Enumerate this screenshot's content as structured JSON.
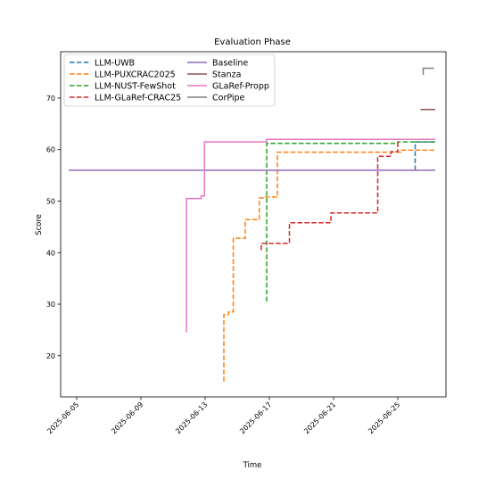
{
  "chart_data": {
    "type": "line",
    "title": "Evaluation Phase",
    "xlabel": "Time",
    "ylabel": "Score",
    "xlim": [
      "2025-06-04",
      "2025-06-28"
    ],
    "ylim": [
      12,
      79
    ],
    "x_ticks": [
      "2025-06-05",
      "2025-06-09",
      "2025-06-13",
      "2025-06-17",
      "2025-06-21",
      "2025-06-25"
    ],
    "y_ticks": [
      20,
      30,
      40,
      50,
      60,
      70
    ],
    "grid": false,
    "legend": "top-left",
    "series": [
      {
        "name": "LLM-UWB",
        "color": "#1f77b4",
        "dash": true,
        "x": [
          "2025-06-26 02:00",
          "2025-06-26 02:00",
          "2025-06-27 08:00"
        ],
        "y": [
          56,
          61.5,
          61.5
        ]
      },
      {
        "name": "LLM-PUXCRAC2025",
        "color": "#ff7f0e",
        "dash": true,
        "x": [
          "2025-06-14 04:00",
          "2025-06-14 04:00",
          "2025-06-14 11:00",
          "2025-06-14 11:00",
          "2025-06-14 18:00",
          "2025-06-14 18:00",
          "2025-06-15 12:00",
          "2025-06-15 12:00",
          "2025-06-16 09:00",
          "2025-06-16 09:00",
          "2025-06-16 18:00",
          "2025-06-16 18:00",
          "2025-06-17 12:00",
          "2025-06-17 12:00",
          "2025-06-25 06:00",
          "2025-06-25 06:00",
          "2025-06-27 08:00"
        ],
        "y": [
          15,
          28,
          28,
          28.5,
          28.5,
          42.8,
          42.8,
          46.4,
          46.4,
          50.6,
          50.6,
          50.8,
          50.8,
          59.5,
          59.5,
          59.9,
          59.9
        ]
      },
      {
        "name": "LLM-NUST-FewShot",
        "color": "#2ca02c",
        "dash": true,
        "x": [
          "2025-06-16 20:00",
          "2025-06-16 20:00",
          "2025-06-25 00:00",
          "2025-06-25 00:00",
          "2025-06-27 08:00"
        ],
        "y": [
          30.5,
          61.2,
          61.2,
          61.5,
          61.5
        ]
      },
      {
        "name": "LLM-GLaRef-CRAC25",
        "color": "#d62728",
        "dash": true,
        "x": [
          "2025-06-16 12:00",
          "2025-06-16 12:00",
          "2025-06-18 06:00",
          "2025-06-18 06:00",
          "2025-06-20 20:00",
          "2025-06-20 20:00",
          "2025-06-23 18:00",
          "2025-06-23 18:00",
          "2025-06-24 14:00",
          "2025-06-24 14:00",
          "2025-06-25 00:00",
          "2025-06-25 00:00",
          "2025-06-27 08:00"
        ],
        "y": [
          40.5,
          41.8,
          41.8,
          45.8,
          45.8,
          47.7,
          47.7,
          58.7,
          58.7,
          59.6,
          59.6,
          62,
          62
        ]
      },
      {
        "name": "Baseline",
        "color": "#9467bd",
        "dash": false,
        "x": [
          "2025-06-04 12:00",
          "2025-06-27 08:00"
        ],
        "y": [
          56,
          56
        ]
      },
      {
        "name": "Stanza",
        "color": "#8c564b",
        "dash": false,
        "x": [
          "2025-06-26 10:00",
          "2025-06-27 08:00"
        ],
        "y": [
          67.8,
          67.8
        ]
      },
      {
        "name": "GLaRef-Propp",
        "color": "#e377c2",
        "dash": false,
        "x": [
          "2025-06-11 20:00",
          "2025-06-11 20:00",
          "2025-06-12 18:00",
          "2025-06-12 18:00",
          "2025-06-12 23:00",
          "2025-06-12 23:00",
          "2025-06-16 20:00",
          "2025-06-16 20:00",
          "2025-06-27 08:00"
        ],
        "y": [
          24.5,
          50.5,
          50.5,
          51,
          51,
          61.5,
          61.5,
          62,
          62
        ]
      },
      {
        "name": "CorPipe",
        "color": "#7f7f7f",
        "dash": false,
        "x": [
          "2025-06-26 14:00",
          "2025-06-26 14:00",
          "2025-06-27 06:00"
        ],
        "y": [
          74.5,
          75.8,
          75.8
        ]
      }
    ]
  }
}
